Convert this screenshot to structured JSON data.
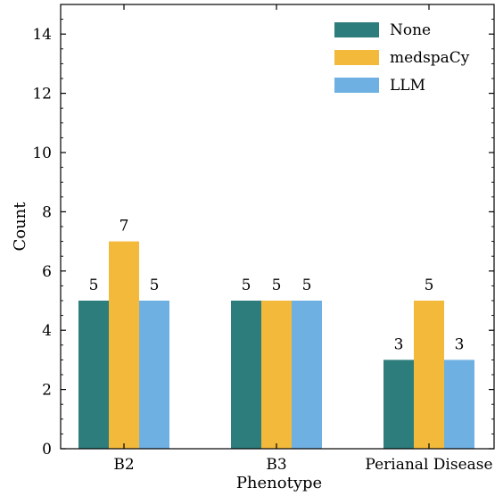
{
  "chart_data": {
    "type": "bar",
    "categories": [
      "B2",
      "B3",
      "Perianal Disease"
    ],
    "series": [
      {
        "name": "None",
        "values": [
          5,
          5,
          3
        ],
        "color": "#2e7d7d"
      },
      {
        "name": "medspaCy",
        "values": [
          7,
          5,
          5
        ],
        "color": "#f3b93b"
      },
      {
        "name": "LLM",
        "values": [
          5,
          5,
          3
        ],
        "color": "#6fb0e3"
      }
    ],
    "title": "",
    "xlabel": "Phenotype",
    "ylabel": "Count",
    "ylim": [
      0,
      15
    ],
    "yticks": [
      0,
      2,
      4,
      6,
      8,
      10,
      12,
      14
    ],
    "grid": false,
    "legend": "top-right",
    "data_labels": true
  }
}
